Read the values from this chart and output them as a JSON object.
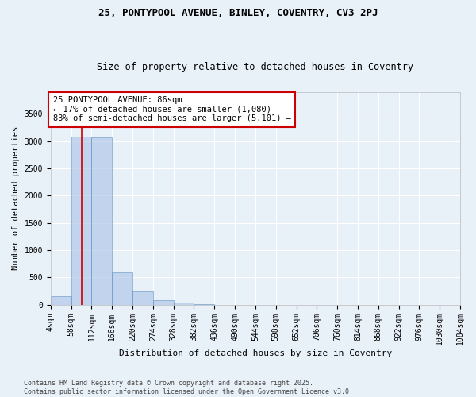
{
  "title1": "25, PONTYPOOL AVENUE, BINLEY, COVENTRY, CV3 2PJ",
  "title2": "Size of property relative to detached houses in Coventry",
  "xlabel": "Distribution of detached houses by size in Coventry",
  "ylabel": "Number of detached properties",
  "bin_labels": [
    "4sqm",
    "58sqm",
    "112sqm",
    "166sqm",
    "220sqm",
    "274sqm",
    "328sqm",
    "382sqm",
    "436sqm",
    "490sqm",
    "544sqm",
    "598sqm",
    "652sqm",
    "706sqm",
    "760sqm",
    "814sqm",
    "868sqm",
    "922sqm",
    "976sqm",
    "1030sqm",
    "1084sqm"
  ],
  "bin_edges": [
    4,
    58,
    112,
    166,
    220,
    274,
    328,
    382,
    436,
    490,
    544,
    598,
    652,
    706,
    760,
    814,
    868,
    922,
    976,
    1030,
    1084
  ],
  "bar_heights": [
    150,
    3080,
    3070,
    590,
    235,
    80,
    35,
    5,
    0,
    0,
    0,
    0,
    0,
    0,
    0,
    0,
    0,
    0,
    0,
    0
  ],
  "bar_color": "#aec6e8",
  "bar_edge_color": "#5a8fc0",
  "bar_alpha": 0.65,
  "red_line_x": 86,
  "red_line_color": "#cc0000",
  "annotation_text": "25 PONTYPOOL AVENUE: 86sqm\n← 17% of detached houses are smaller (1,080)\n83% of semi-detached houses are larger (5,101) →",
  "annotation_box_color": "#ffffff",
  "annotation_box_edge_color": "#cc0000",
  "ylim": [
    0,
    3900
  ],
  "yticks": [
    0,
    500,
    1000,
    1500,
    2000,
    2500,
    3000,
    3500
  ],
  "bg_color": "#e8f0f8",
  "grid_color": "#ffffff",
  "footer_text": "Contains HM Land Registry data © Crown copyright and database right 2025.\nContains public sector information licensed under the Open Government Licence v3.0.",
  "title1_fontsize": 9,
  "title2_fontsize": 8.5,
  "xlabel_fontsize": 8,
  "ylabel_fontsize": 7.5,
  "tick_fontsize": 7,
  "annotation_fontsize": 7.5,
  "footer_fontsize": 6
}
